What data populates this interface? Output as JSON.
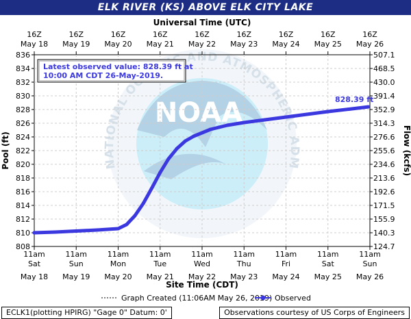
{
  "title": "ELK RIVER (KS) ABOVE ELK CITY LAKE",
  "chart_data": {
    "type": "line",
    "top_axis_title": "Universal Time (UTC)",
    "bottom_axis_title": "Site Time (CDT)",
    "ylabel_left": "Pool (ft)",
    "ylabel_right": "Flow (kcfs)",
    "ylim": [
      808,
      836
    ],
    "y_ticks": [
      "836",
      "834",
      "832",
      "830",
      "828",
      "826",
      "824",
      "822",
      "820",
      "818",
      "816",
      "814",
      "812",
      "810",
      "808"
    ],
    "y_right_ticks": [
      "507.1",
      "468.5",
      "430.0",
      "391.4",
      "352.9",
      "314.3",
      "276.6",
      "255.6",
      "234.6",
      "213.6",
      "192.6",
      "171.5",
      "155.9",
      "140.3",
      "124.7"
    ],
    "x_categories_top_time": [
      "16Z",
      "16Z",
      "16Z",
      "16Z",
      "16Z",
      "16Z",
      "16Z",
      "16Z",
      "16Z"
    ],
    "x_categories_top_date": [
      "May 18",
      "May 19",
      "May 20",
      "May 21",
      "May 22",
      "May 23",
      "May 24",
      "May 25",
      "May 26"
    ],
    "x_categories_bottom_time": [
      "11am",
      "11am",
      "11am",
      "11am",
      "11am",
      "11am",
      "11am",
      "11am",
      "11am"
    ],
    "x_categories_bottom_day": [
      "Sat",
      "Sun",
      "Mon",
      "Tue",
      "Wed",
      "Thu",
      "Fri",
      "Sat",
      "Sun"
    ],
    "x_categories_bottom_date": [
      "May 18",
      "May 19",
      "May 20",
      "May 21",
      "May 22",
      "May 23",
      "May 24",
      "May 25",
      "May 26"
    ],
    "series": [
      {
        "name": "Observed",
        "color": "#3b38e0",
        "x_days": [
          0,
          0.5,
          1.0,
          1.5,
          2.0,
          2.2,
          2.4,
          2.6,
          2.8,
          3.0,
          3.2,
          3.4,
          3.6,
          3.8,
          4.0,
          4.2,
          4.4,
          4.6,
          4.8,
          5.0,
          5.5,
          6.0,
          6.5,
          7.0,
          7.5,
          7.96
        ],
        "values": [
          810.0,
          810.1,
          810.25,
          810.4,
          810.6,
          811.2,
          812.5,
          814.3,
          816.5,
          818.8,
          820.8,
          822.3,
          823.4,
          824.1,
          824.6,
          825.1,
          825.4,
          825.7,
          825.9,
          826.1,
          826.5,
          826.9,
          827.3,
          827.7,
          828.05,
          828.39
        ]
      }
    ],
    "end_label": "828.39 ft",
    "annotation": "Latest observed value: 828.39 ft at 10:00 AM CDT 26-May-2019.",
    "legend": {
      "graph_created": "Graph Created (11:06AM May 26, 2019)",
      "observed": "Observed"
    },
    "watermark_text": "NATIONAL OCEANIC AND ATMOSPHERIC ADMINISTRATION · U.S. DEPARTMENT OF COMMERCE",
    "watermark_logo": "NOAA"
  },
  "footer": {
    "left": "ECLK1(plotting HPIRG) \"Gage 0\" Datum: 0'",
    "right": "Observations courtesy of US Corps of Engineers"
  }
}
